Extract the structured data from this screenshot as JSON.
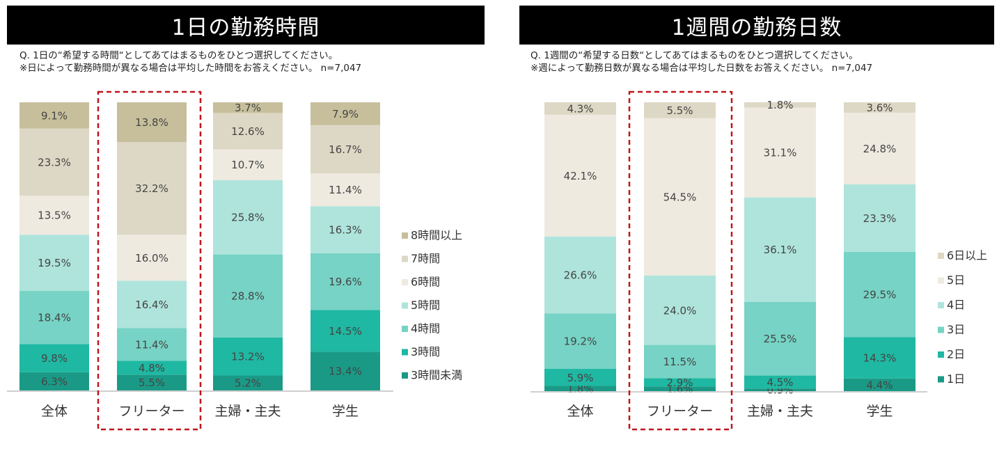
{
  "chart_data": [
    {
      "type": "bar",
      "stacked": true,
      "title": "1日の勤務時間",
      "question": "Q. 1日の“希望する時間“としてあてはまるものをひとつ選択してください。",
      "note": "※日によって勤務時間が異なる場合は平均した時間をお答えください。 n=7,047",
      "categories": [
        "全体",
        "フリーター",
        "主婦・主夫",
        "学生"
      ],
      "highlighted_category": "フリーター",
      "legend_position": "right",
      "series": [
        {
          "name": "3時間未満",
          "color": "#1a9a86",
          "values": [
            6.3,
            5.5,
            5.2,
            13.4
          ]
        },
        {
          "name": "3時間",
          "color": "#1fb8a2",
          "values": [
            9.8,
            4.8,
            13.2,
            14.5
          ]
        },
        {
          "name": "4時間",
          "color": "#76d3c5",
          "values": [
            18.4,
            11.4,
            28.8,
            19.6
          ]
        },
        {
          "name": "5時間",
          "color": "#aee4dc",
          "values": [
            19.5,
            16.4,
            25.8,
            16.3
          ]
        },
        {
          "name": "6時間",
          "color": "#eeeae0",
          "values": [
            13.5,
            16.0,
            10.7,
            11.4
          ]
        },
        {
          "name": "7時間",
          "color": "#ddd8c5",
          "values": [
            23.3,
            32.2,
            12.6,
            16.7
          ]
        },
        {
          "name": "8時間以上",
          "color": "#c7bf9b",
          "values": [
            9.1,
            13.8,
            3.7,
            7.9
          ]
        }
      ]
    },
    {
      "type": "bar",
      "stacked": true,
      "title": "1週間の勤務日数",
      "question": "Q. 1週間の“希望する日数“としてあてはまるものをひとつ選択してください。",
      "note": "※週によって勤務日数が異なる場合は平均した日数をお答えください。 n=7,047",
      "categories": [
        "全体",
        "フリーター",
        "主婦・主夫",
        "学生"
      ],
      "highlighted_category": "フリーター",
      "legend_position": "right",
      "series": [
        {
          "name": "1日",
          "color": "#1a9a86",
          "values": [
            1.8,
            1.6,
            0.9,
            4.4
          ]
        },
        {
          "name": "2日",
          "color": "#1fb8a2",
          "values": [
            5.9,
            2.9,
            4.5,
            14.3
          ]
        },
        {
          "name": "3日",
          "color": "#76d3c5",
          "values": [
            19.2,
            11.5,
            25.5,
            29.5
          ]
        },
        {
          "name": "4日",
          "color": "#aee4dc",
          "values": [
            26.6,
            24.0,
            36.1,
            23.3
          ]
        },
        {
          "name": "5日",
          "color": "#eeeae0",
          "values": [
            42.1,
            54.5,
            31.1,
            24.8
          ]
        },
        {
          "name": "6日以上",
          "color": "#ddd8c5",
          "values": [
            4.3,
            5.5,
            1.8,
            3.6
          ]
        }
      ]
    }
  ]
}
